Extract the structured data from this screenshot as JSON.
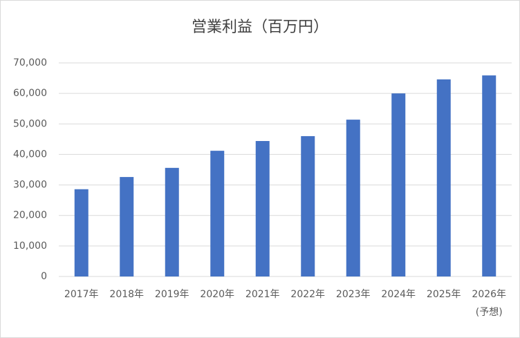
{
  "chart_data": {
    "type": "bar",
    "title": "営業利益（百万円）",
    "categories": [
      "2017年",
      "2018年",
      "2019年",
      "2020年",
      "2021年",
      "2022年",
      "2023年",
      "2024年",
      "2025年",
      "2026年\n(予想)"
    ],
    "values": [
      28600,
      32600,
      35600,
      41200,
      44400,
      46000,
      51400,
      60000,
      64600,
      65900
    ],
    "color": "#4472c4",
    "ylim": [
      0,
      70000
    ],
    "yticks": [
      0,
      {
        "value": 10000,
        "label": "10,000"
      },
      {
        "value": 20000,
        "label": "20,000"
      },
      {
        "value": 30000,
        "label": "30,000"
      },
      {
        "value": 40000,
        "label": "40,000"
      },
      {
        "value": 50000,
        "label": "50,000"
      },
      {
        "value": 60000,
        "label": "60,000"
      },
      {
        "value": 70000,
        "label": "70,000"
      }
    ],
    "grid": true
  }
}
